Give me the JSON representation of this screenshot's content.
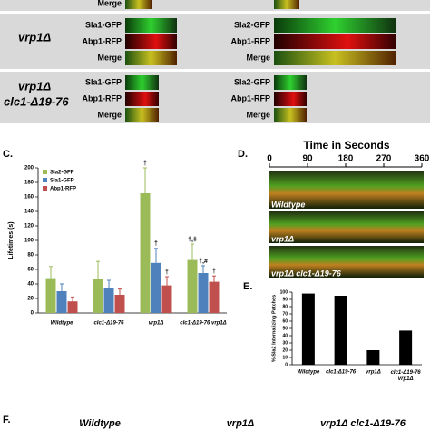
{
  "panel_b": {
    "top_label": "Merge",
    "groups": [
      {
        "strain": [
          "vrp1Δ"
        ],
        "left_labels": [
          "Sla1-GFP",
          "Abp1-RFP",
          "Merge"
        ],
        "right_labels": [
          "Sla2-GFP",
          "Abp1-RFP",
          "Merge"
        ]
      },
      {
        "strain": [
          "vrp1Δ",
          "clc1-Δ19-76"
        ],
        "left_labels": [
          "Sla1-GFP",
          "Abp1-RFP",
          "Merge"
        ],
        "right_labels": [
          "Sla2-GFP",
          "Abp1-RFP",
          "Merge"
        ]
      }
    ]
  },
  "chart_data": [
    {
      "type": "bar",
      "letter": "C.",
      "ylabel": "Lifetimes (s)",
      "categories": [
        "Wildtype",
        "clc1-Δ19-76",
        "vrp1Δ",
        "clc1-Δ19-76 vrp1Δ"
      ],
      "series": [
        {
          "name": "Sla2-GFP",
          "color": "#9bbb59",
          "values": [
            48,
            47,
            165,
            73
          ],
          "errors": [
            16,
            24,
            35,
            22
          ],
          "annotations": [
            null,
            null,
            "†",
            "†,‡"
          ]
        },
        {
          "name": "Sla1-GFP",
          "color": "#4f81bd",
          "values": [
            30,
            35,
            69,
            55
          ],
          "errors": [
            10,
            10,
            20,
            10
          ],
          "annotations": [
            null,
            null,
            "†",
            "†,#"
          ]
        },
        {
          "name": "Abp1-RFP",
          "color": "#c0504d",
          "values": [
            16,
            25,
            38,
            43
          ],
          "errors": [
            6,
            8,
            12,
            8
          ],
          "annotations": [
            null,
            null,
            "†",
            "†"
          ]
        }
      ],
      "ylim": [
        0,
        200
      ],
      "yticks": [
        0,
        20,
        40,
        60,
        80,
        100,
        120,
        140,
        160,
        180,
        200
      ],
      "legend": "top-left"
    },
    {
      "type": "bar",
      "letter": "E.",
      "ylabel": "% Sla2 Internalizing Patches",
      "categories": [
        "Wildtype",
        "clc1-Δ19-76",
        "vrp1Δ",
        "clc1-Δ19-76 vrp1Δ"
      ],
      "values": [
        98,
        95,
        20,
        47
      ],
      "color": "#000000",
      "ylim": [
        0,
        100
      ],
      "yticks": [
        0,
        10,
        20,
        30,
        40,
        50,
        60,
        70,
        80,
        90,
        100
      ]
    }
  ],
  "panel_d": {
    "letter": "D.",
    "title": "Time in Seconds",
    "xlim": [
      0,
      360
    ],
    "xticks": [
      0,
      90,
      180,
      270,
      360
    ],
    "labels": [
      "Wildtype",
      "vrp1Δ",
      "vrp1Δ clc1-Δ19-76"
    ]
  },
  "panel_f": {
    "letter": "F.",
    "labels": [
      "Wildtype",
      "vrp1Δ",
      "vrp1Δ clc1-Δ19-76"
    ]
  }
}
